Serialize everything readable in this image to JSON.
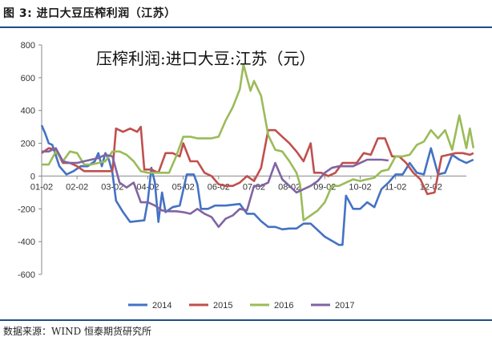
{
  "caption": "图 3: 进口大豆压榨利润（江苏）",
  "source": "数据来源：WIND 恒泰期货研究所",
  "chart_data": {
    "type": "line",
    "title": "压榨利润:进口大豆:江苏（元）",
    "xlabel": "",
    "ylabel": "",
    "ylim": [
      -600,
      800
    ],
    "yticks": [
      -600,
      -400,
      -200,
      0,
      200,
      400,
      600,
      800
    ],
    "xlim": [
      1,
      13
    ],
    "xtick_labels": [
      "01-02",
      "02-02",
      "03-02",
      "04-02",
      "05-02",
      "06-02",
      "07-02",
      "08-02",
      "09-02",
      "10-02",
      "11-02",
      "12-02"
    ],
    "grid": false,
    "legend_position": "bottom",
    "series": [
      {
        "name": "2014",
        "color": "#4472c4",
        "points": [
          [
            1.0,
            310
          ],
          [
            1.1,
            260
          ],
          [
            1.2,
            200
          ],
          [
            1.3,
            190
          ],
          [
            1.5,
            60
          ],
          [
            1.7,
            10
          ],
          [
            1.9,
            30
          ],
          [
            2.1,
            60
          ],
          [
            2.3,
            60
          ],
          [
            2.5,
            90
          ],
          [
            2.6,
            140
          ],
          [
            2.7,
            60
          ],
          [
            2.8,
            140
          ],
          [
            2.9,
            100
          ],
          [
            3.0,
            20
          ],
          [
            3.1,
            -150
          ],
          [
            3.3,
            -220
          ],
          [
            3.5,
            -280
          ],
          [
            3.7,
            -275
          ],
          [
            3.9,
            -270
          ],
          [
            4.0,
            -150
          ],
          [
            4.1,
            50
          ],
          [
            4.2,
            -40
          ],
          [
            4.3,
            -280
          ],
          [
            4.4,
            -100
          ],
          [
            4.5,
            -220
          ],
          [
            4.7,
            -190
          ],
          [
            4.9,
            -180
          ],
          [
            5.1,
            10
          ],
          [
            5.3,
            10
          ],
          [
            5.4,
            -50
          ],
          [
            5.5,
            -200
          ],
          [
            5.7,
            -200
          ],
          [
            5.9,
            -180
          ],
          [
            6.2,
            -180
          ],
          [
            6.4,
            -175
          ],
          [
            6.6,
            -170
          ],
          [
            6.8,
            -230
          ],
          [
            7.0,
            -230
          ],
          [
            7.2,
            -275
          ],
          [
            7.4,
            -310
          ],
          [
            7.6,
            -310
          ],
          [
            7.8,
            -325
          ],
          [
            8.0,
            -320
          ],
          [
            8.2,
            -320
          ],
          [
            8.4,
            -290
          ],
          [
            8.6,
            -290
          ],
          [
            8.8,
            -330
          ],
          [
            9.0,
            -370
          ],
          [
            9.2,
            -395
          ],
          [
            9.4,
            -420
          ],
          [
            9.5,
            -420
          ],
          [
            9.6,
            -120
          ],
          [
            9.8,
            -200
          ],
          [
            10.0,
            -200
          ],
          [
            10.2,
            -160
          ],
          [
            10.4,
            -190
          ],
          [
            10.6,
            -80
          ],
          [
            10.8,
            -40
          ],
          [
            11.0,
            10
          ],
          [
            11.2,
            10
          ],
          [
            11.4,
            80
          ],
          [
            11.6,
            20
          ],
          [
            11.8,
            10
          ],
          [
            12.0,
            170
          ],
          [
            12.2,
            10
          ],
          [
            12.4,
            20
          ],
          [
            12.6,
            130
          ],
          [
            12.8,
            100
          ],
          [
            13.0,
            80
          ],
          [
            13.1,
            90
          ],
          [
            13.2,
            100
          ]
        ]
      },
      {
        "name": "2015",
        "color": "#c0504d",
        "points": [
          [
            1.0,
            140
          ],
          [
            1.2,
            170
          ],
          [
            1.4,
            160
          ],
          [
            1.6,
            80
          ],
          [
            1.8,
            80
          ],
          [
            2.0,
            60
          ],
          [
            2.2,
            30
          ],
          [
            2.4,
            30
          ],
          [
            2.6,
            30
          ],
          [
            2.8,
            30
          ],
          [
            3.0,
            30
          ],
          [
            3.1,
            290
          ],
          [
            3.3,
            270
          ],
          [
            3.5,
            290
          ],
          [
            3.7,
            270
          ],
          [
            3.8,
            300
          ],
          [
            3.9,
            40
          ],
          [
            4.1,
            40
          ],
          [
            4.3,
            20
          ],
          [
            4.5,
            140
          ],
          [
            4.7,
            140
          ],
          [
            4.9,
            120
          ],
          [
            5.0,
            200
          ],
          [
            5.2,
            90
          ],
          [
            5.4,
            90
          ],
          [
            5.6,
            20
          ],
          [
            5.8,
            0
          ],
          [
            6.0,
            -50
          ],
          [
            6.2,
            -60
          ],
          [
            6.4,
            -60
          ],
          [
            6.6,
            -40
          ],
          [
            6.8,
            0
          ],
          [
            7.0,
            -30
          ],
          [
            7.2,
            50
          ],
          [
            7.4,
            280
          ],
          [
            7.6,
            280
          ],
          [
            7.8,
            240
          ],
          [
            8.0,
            200
          ],
          [
            8.2,
            150
          ],
          [
            8.4,
            90
          ],
          [
            8.6,
            200
          ],
          [
            8.7,
            20
          ],
          [
            8.9,
            20
          ],
          [
            9.1,
            0
          ],
          [
            9.3,
            20
          ],
          [
            9.5,
            80
          ],
          [
            9.7,
            80
          ],
          [
            9.9,
            80
          ],
          [
            10.1,
            140
          ],
          [
            10.3,
            130
          ],
          [
            10.5,
            230
          ],
          [
            10.7,
            230
          ],
          [
            10.9,
            120
          ],
          [
            11.1,
            120
          ],
          [
            11.3,
            80
          ],
          [
            11.5,
            20
          ],
          [
            11.7,
            -20
          ],
          [
            11.9,
            -110
          ],
          [
            12.1,
            -100
          ],
          [
            12.3,
            120
          ],
          [
            12.5,
            130
          ],
          [
            12.7,
            140
          ],
          [
            12.9,
            140
          ],
          [
            13.1,
            130
          ],
          [
            13.2,
            140
          ]
        ]
      },
      {
        "name": "2016",
        "color": "#9bbb59",
        "points": [
          [
            1.0,
            70
          ],
          [
            1.2,
            70
          ],
          [
            1.4,
            150
          ],
          [
            1.6,
            90
          ],
          [
            1.8,
            150
          ],
          [
            2.0,
            140
          ],
          [
            2.2,
            70
          ],
          [
            2.4,
            70
          ],
          [
            2.6,
            80
          ],
          [
            2.8,
            90
          ],
          [
            3.0,
            150
          ],
          [
            3.2,
            150
          ],
          [
            3.4,
            130
          ],
          [
            3.6,
            90
          ],
          [
            3.8,
            30
          ],
          [
            4.0,
            20
          ],
          [
            4.2,
            20
          ],
          [
            4.4,
            20
          ],
          [
            4.6,
            20
          ],
          [
            4.8,
            120
          ],
          [
            5.0,
            240
          ],
          [
            5.2,
            240
          ],
          [
            5.4,
            230
          ],
          [
            5.6,
            230
          ],
          [
            5.8,
            230
          ],
          [
            6.0,
            240
          ],
          [
            6.2,
            340
          ],
          [
            6.4,
            420
          ],
          [
            6.6,
            530
          ],
          [
            6.7,
            680
          ],
          [
            6.8,
            600
          ],
          [
            6.9,
            520
          ],
          [
            7.0,
            580
          ],
          [
            7.2,
            490
          ],
          [
            7.4,
            250
          ],
          [
            7.6,
            160
          ],
          [
            7.8,
            150
          ],
          [
            8.0,
            90
          ],
          [
            8.2,
            20
          ],
          [
            8.3,
            -50
          ],
          [
            8.4,
            -270
          ],
          [
            8.6,
            -240
          ],
          [
            8.8,
            -210
          ],
          [
            9.0,
            -160
          ],
          [
            9.2,
            -60
          ],
          [
            9.4,
            -60
          ],
          [
            9.6,
            -40
          ],
          [
            9.8,
            -20
          ],
          [
            10.0,
            -30
          ],
          [
            10.2,
            -20
          ],
          [
            10.4,
            -10
          ],
          [
            10.6,
            30
          ],
          [
            10.8,
            40
          ],
          [
            11.0,
            120
          ],
          [
            11.2,
            120
          ],
          [
            11.4,
            130
          ],
          [
            11.6,
            190
          ],
          [
            11.8,
            210
          ],
          [
            12.0,
            280
          ],
          [
            12.2,
            230
          ],
          [
            12.4,
            280
          ],
          [
            12.6,
            160
          ],
          [
            12.8,
            370
          ],
          [
            13.0,
            170
          ],
          [
            13.1,
            290
          ],
          [
            13.2,
            170
          ]
        ]
      },
      {
        "name": "2017",
        "color": "#8064a2",
        "points": [
          [
            1.0,
            150
          ],
          [
            1.2,
            150
          ],
          [
            1.4,
            170
          ],
          [
            1.6,
            90
          ],
          [
            1.8,
            80
          ],
          [
            2.0,
            80
          ],
          [
            2.2,
            90
          ],
          [
            2.4,
            100
          ],
          [
            2.6,
            110
          ],
          [
            2.8,
            130
          ],
          [
            3.0,
            120
          ],
          [
            3.2,
            -40
          ],
          [
            3.4,
            -70
          ],
          [
            3.6,
            -40
          ],
          [
            3.8,
            -160
          ],
          [
            4.0,
            -160
          ],
          [
            4.2,
            -180
          ],
          [
            4.4,
            -210
          ],
          [
            4.6,
            -215
          ],
          [
            4.8,
            -215
          ],
          [
            5.0,
            -220
          ],
          [
            5.2,
            -230
          ],
          [
            5.4,
            -200
          ],
          [
            5.6,
            -230
          ],
          [
            5.8,
            -250
          ],
          [
            6.0,
            -310
          ],
          [
            6.2,
            -260
          ],
          [
            6.4,
            -240
          ],
          [
            6.6,
            -200
          ],
          [
            6.8,
            -210
          ],
          [
            7.0,
            -60
          ],
          [
            7.2,
            -60
          ],
          [
            7.4,
            -40
          ],
          [
            7.6,
            80
          ],
          [
            7.8,
            -20
          ],
          [
            8.0,
            -60
          ],
          [
            8.2,
            -100
          ],
          [
            8.4,
            -80
          ],
          [
            8.6,
            -60
          ],
          [
            8.8,
            -30
          ],
          [
            9.0,
            20
          ],
          [
            9.2,
            50
          ],
          [
            9.4,
            60
          ],
          [
            9.6,
            60
          ],
          [
            9.8,
            60
          ],
          [
            10.0,
            80
          ],
          [
            10.2,
            100
          ],
          [
            10.4,
            100
          ],
          [
            10.6,
            100
          ],
          [
            10.8,
            95
          ]
        ]
      }
    ]
  }
}
